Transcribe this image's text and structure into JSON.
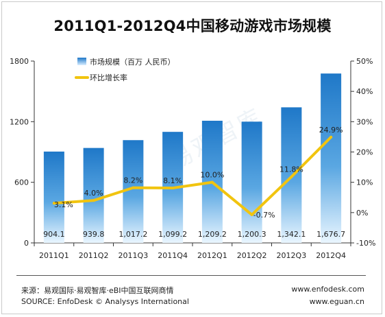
{
  "title": "2011Q1-2012Q4中国移动游戏市场规模",
  "footer": {
    "source_cn": "来源：易观国际·易观智库·eBI中国互联网商情",
    "source_en": "SOURCE: EnfoDesk © Analysys International",
    "site1": "www.enfodesk.com",
    "site2": "www.eguan.cn"
  },
  "watermark": "易观智库",
  "colors": {
    "bar_dark": "#1f78c8",
    "bar_light": "#eaf6ff",
    "line": "#f1c40f"
  },
  "chart_data": {
    "type": "bar",
    "categories": [
      "2011Q1",
      "2011Q2",
      "2011Q3",
      "2011Q4",
      "2012Q1",
      "2012Q2",
      "2012Q3",
      "2012Q4"
    ],
    "series": [
      {
        "name": "市场规模（百万 人民币）",
        "type": "bar",
        "axis": "left",
        "values": [
          904.1,
          939.8,
          1017.2,
          1099.2,
          1209.2,
          1200.3,
          1342.1,
          1676.7
        ],
        "labels": [
          "904.1",
          "939.8",
          "1,017.2",
          "1,099.2",
          "1,209.2",
          "1,200.3",
          "1,342.1",
          "1,676.7"
        ]
      },
      {
        "name": "环比增长率",
        "type": "line",
        "axis": "right",
        "values": [
          3.1,
          4.0,
          8.2,
          8.1,
          10.0,
          -0.7,
          11.8,
          24.9
        ],
        "labels": [
          "3.1%",
          "4.0%",
          "8.2%",
          "8.1%",
          "10.0%",
          "-0.7%",
          "11.8%",
          "24.9%"
        ]
      }
    ],
    "y_left": {
      "min": 0,
      "max": 1800,
      "ticks": [
        0,
        600,
        1200,
        1800
      ]
    },
    "y_right": {
      "min": -10,
      "max": 50,
      "ticks": [
        -10,
        0,
        10,
        20,
        30,
        40,
        50
      ],
      "tick_labels": [
        "-10%",
        "0%",
        "10%",
        "20%",
        "30%",
        "40%",
        "50%"
      ]
    },
    "legend_placement": "top-left",
    "grid": false
  }
}
